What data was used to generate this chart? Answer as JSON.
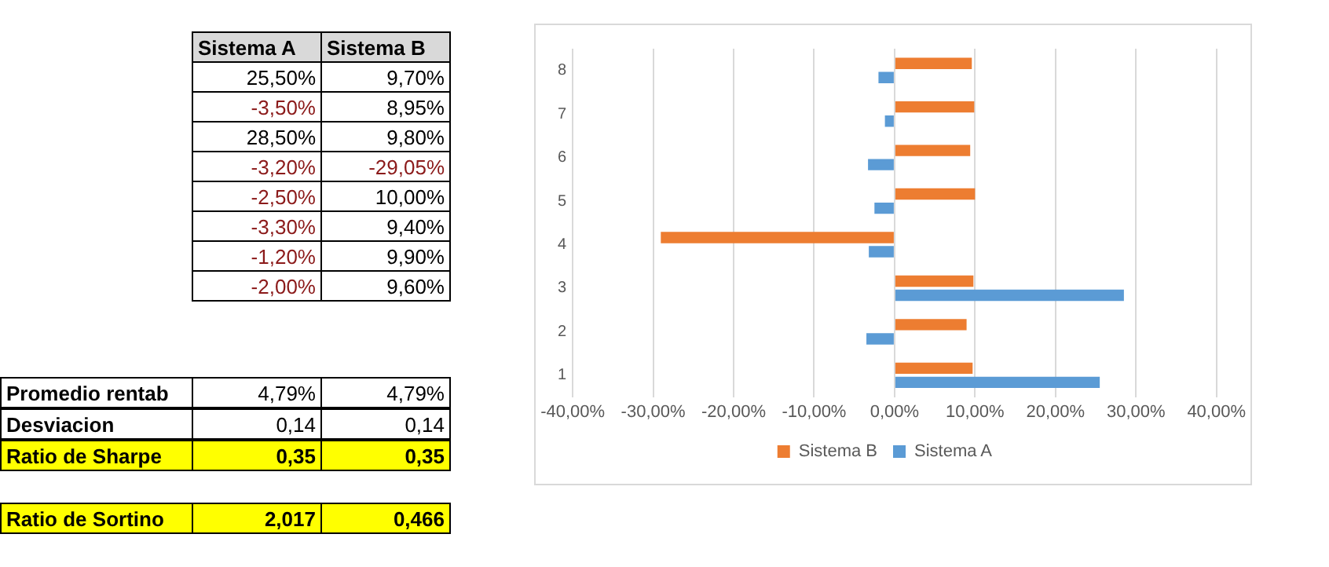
{
  "chart_data": {
    "type": "bar",
    "orientation": "horizontal",
    "categories": [
      "8",
      "7",
      "6",
      "5",
      "4",
      "3",
      "2",
      "1"
    ],
    "series": [
      {
        "name": "Sistema B",
        "color": "#ed7d31",
        "values": [
          9.6,
          9.9,
          9.4,
          10.0,
          -29.05,
          9.8,
          8.95,
          9.7
        ]
      },
      {
        "name": "Sistema A",
        "color": "#5b9bd5",
        "values": [
          -2.0,
          -1.2,
          -3.3,
          -2.5,
          -3.2,
          28.5,
          -3.5,
          25.5
        ]
      }
    ],
    "xlim": [
      -40,
      40
    ],
    "xticks": [
      {
        "value": -40,
        "label": "-40,00%"
      },
      {
        "value": -30,
        "label": "-30,00%"
      },
      {
        "value": -20,
        "label": "-20,00%"
      },
      {
        "value": -10,
        "label": "-10,00%"
      },
      {
        "value": 0,
        "label": "0,00%"
      },
      {
        "value": 10,
        "label": "10,00%"
      },
      {
        "value": 20,
        "label": "20,00%"
      },
      {
        "value": 30,
        "label": "30,00%"
      },
      {
        "value": 40,
        "label": "40,00%"
      }
    ],
    "grid": "x",
    "legend": "bottom",
    "annotations": [
      "Sistema A",
      "Sistema B",
      "25,50%",
      "9,70%",
      "-3,50%",
      "8,95%",
      "28,50%",
      "9,80%",
      "-3,20%",
      "-29,05%",
      "-2,50%",
      "10,00%",
      "-3,30%",
      "9,40%",
      "-1,20%",
      "9,90%",
      "-2,00%",
      "9,60%",
      "Promedio rentab",
      "4,79%",
      "4,79%",
      "Desviacion",
      "0,14",
      "0,14",
      "Ratio de Sharpe",
      "0,35",
      "0,35",
      "Ratio de Sortino",
      "2,017",
      "0,466"
    ]
  }
}
